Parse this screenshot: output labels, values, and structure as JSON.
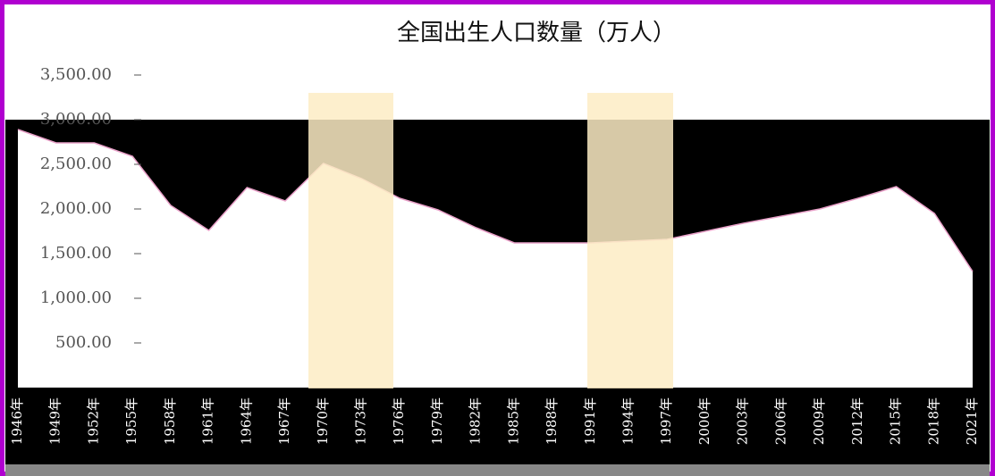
{
  "chart_data": {
    "type": "area",
    "title": "全国出生人口数量（万人）",
    "categories": [
      "1946年",
      "1949年",
      "1952年",
      "1955年",
      "1958年",
      "1961年",
      "1964年",
      "1967年",
      "1970年",
      "1973年",
      "1976年",
      "1979年",
      "1982年",
      "1985年",
      "1988年",
      "1991年",
      "1994年",
      "1997年",
      "2000年",
      "2003年",
      "2006年",
      "2009年",
      "2012年",
      "2015年",
      "2018年",
      "2021年"
    ],
    "values": [
      2890,
      2740,
      2740,
      2590,
      2040,
      1760,
      2240,
      2090,
      2510,
      2340,
      2120,
      1990,
      1790,
      1620,
      1620,
      1620,
      1640,
      1660,
      1750,
      1840,
      1920,
      2000,
      2120,
      2250,
      1950,
      1300
    ],
    "color": "#ffffff",
    "ylim": [
      0,
      3500
    ],
    "yticks": [
      {
        "value": 500,
        "label": "500.00"
      },
      {
        "value": 1000,
        "label": "1,000.00"
      },
      {
        "value": 1500,
        "label": "1,500.00"
      },
      {
        "value": 2000,
        "label": "2,000.00"
      },
      {
        "value": 2500,
        "label": "2,500.00"
      },
      {
        "value": 3000,
        "label": "3,000.00"
      },
      {
        "value": 3500,
        "label": "3,500.00"
      }
    ],
    "grid": false
  }
}
